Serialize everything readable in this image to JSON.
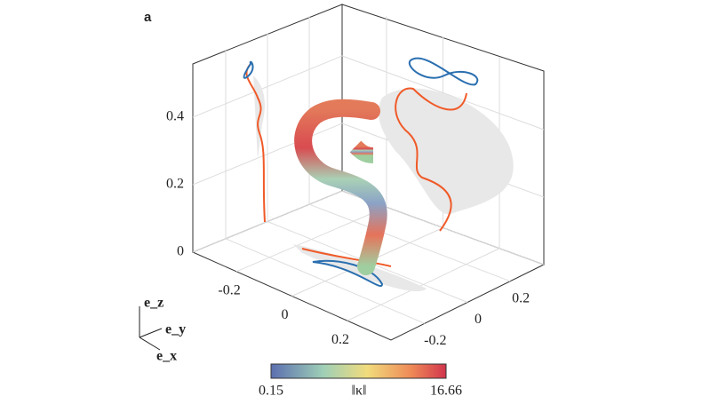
{
  "panel_label": "a",
  "axes": {
    "z_ticks": [
      0,
      0.2,
      0.4
    ],
    "y_ticks": [
      -0.2,
      0,
      0.2
    ],
    "x_ticks": [
      -0.2,
      0,
      0.2
    ]
  },
  "basis": {
    "z": "e_z",
    "y": "e_y",
    "x": "e_x"
  },
  "colorbar": {
    "min": 0.15,
    "max": 16.66,
    "label": "‖κ‖"
  }
}
